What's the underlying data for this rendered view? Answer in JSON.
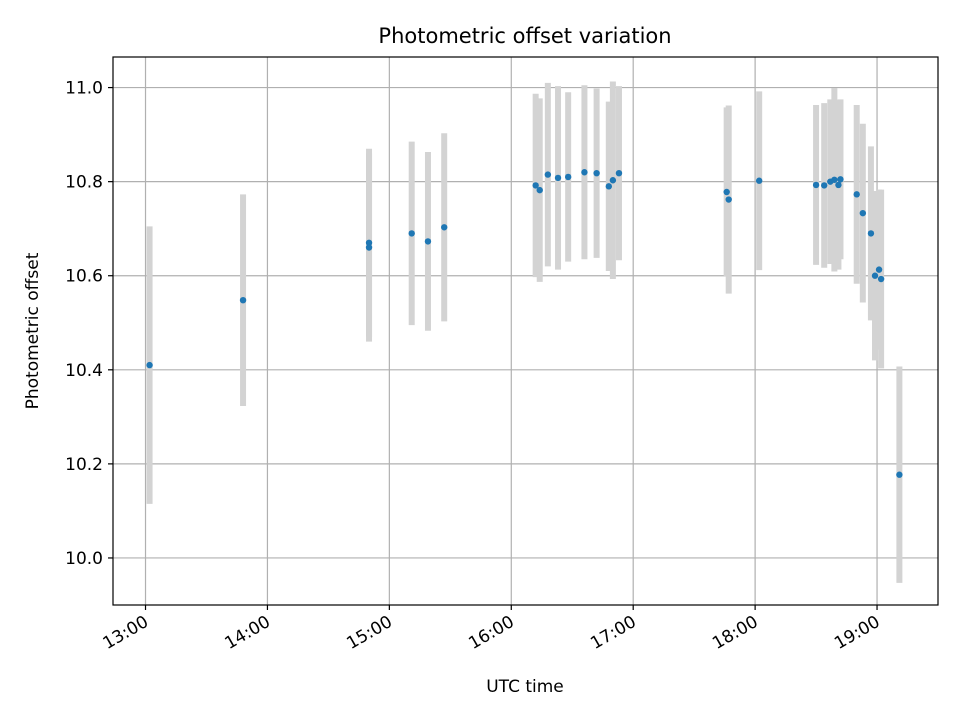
{
  "chart_data": {
    "type": "scatter",
    "title": "Photometric offset variation",
    "xlabel": "UTC time",
    "ylabel": "Photometric offset",
    "xlim": [
      "12:44",
      "19:30"
    ],
    "ylim": [
      9.9,
      11.065
    ],
    "grid": true,
    "x_ticks": [
      "13:00",
      "14:00",
      "15:00",
      "16:00",
      "17:00",
      "18:00",
      "19:00"
    ],
    "y_ticks": [
      10.0,
      10.2,
      10.4,
      10.6,
      10.8,
      11.0
    ],
    "colors": {
      "point": "#1f77b4",
      "errorbar": "#d3d3d3",
      "grid": "#b0b0b0"
    },
    "series": [
      {
        "points": [
          {
            "t": "13:02",
            "y": 10.41,
            "err": 0.295
          },
          {
            "t": "13:48",
            "y": 10.548,
            "err": 0.225
          },
          {
            "t": "14:50",
            "y": 10.67,
            "err": 0.2
          },
          {
            "t": "14:50",
            "y": 10.66,
            "err": 0.2
          },
          {
            "t": "15:11",
            "y": 10.69,
            "err": 0.195
          },
          {
            "t": "15:19",
            "y": 10.673,
            "err": 0.19
          },
          {
            "t": "15:27",
            "y": 10.703,
            "err": 0.2
          },
          {
            "t": "16:12",
            "y": 10.792,
            "err": 0.195
          },
          {
            "t": "16:14",
            "y": 10.782,
            "err": 0.195
          },
          {
            "t": "16:18",
            "y": 10.815,
            "err": 0.195
          },
          {
            "t": "16:23",
            "y": 10.808,
            "err": 0.195
          },
          {
            "t": "16:28",
            "y": 10.81,
            "err": 0.18
          },
          {
            "t": "16:36",
            "y": 10.82,
            "err": 0.185
          },
          {
            "t": "16:42",
            "y": 10.818,
            "err": 0.18
          },
          {
            "t": "16:48",
            "y": 10.79,
            "err": 0.18
          },
          {
            "t": "16:50",
            "y": 10.803,
            "err": 0.21
          },
          {
            "t": "16:53",
            "y": 10.818,
            "err": 0.185
          },
          {
            "t": "17:46",
            "y": 10.778,
            "err": 0.18
          },
          {
            "t": "17:47",
            "y": 10.762,
            "err": 0.2
          },
          {
            "t": "18:02",
            "y": 10.802,
            "err": 0.19
          },
          {
            "t": "18:30",
            "y": 10.793,
            "err": 0.17
          },
          {
            "t": "18:34",
            "y": 10.792,
            "err": 0.175
          },
          {
            "t": "18:37",
            "y": 10.8,
            "err": 0.175
          },
          {
            "t": "18:39",
            "y": 10.804,
            "err": 0.195
          },
          {
            "t": "18:41",
            "y": 10.793,
            "err": 0.18
          },
          {
            "t": "18:42",
            "y": 10.805,
            "err": 0.17
          },
          {
            "t": "18:50",
            "y": 10.773,
            "err": 0.19
          },
          {
            "t": "18:53",
            "y": 10.733,
            "err": 0.19
          },
          {
            "t": "18:57",
            "y": 10.69,
            "err": 0.185
          },
          {
            "t": "18:59",
            "y": 10.6,
            "err": 0.18
          },
          {
            "t": "19:01",
            "y": 10.613,
            "err": 0.17
          },
          {
            "t": "19:02",
            "y": 10.593,
            "err": 0.19
          },
          {
            "t": "19:11",
            "y": 10.177,
            "err": 0.23
          }
        ]
      }
    ]
  }
}
